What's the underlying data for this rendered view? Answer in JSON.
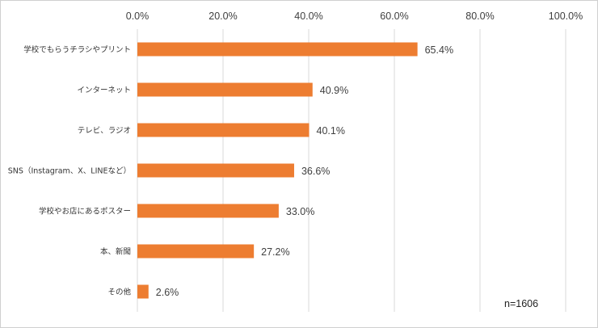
{
  "chart_data": {
    "type": "bar",
    "orientation": "horizontal",
    "categories": [
      "学校でもらうチラシやプリント",
      "インターネット",
      "テレビ、ラジオ",
      "SNS（Instagram、X、LINEなど）",
      "学校やお店にあるポスター",
      "本、新聞",
      "その他"
    ],
    "values": [
      65.4,
      40.9,
      40.1,
      36.6,
      33.0,
      27.2,
      2.6
    ],
    "value_labels": [
      "65.4%",
      "40.9%",
      "40.1%",
      "36.6%",
      "33.0%",
      "27.2%",
      "2.6%"
    ],
    "xlim": [
      0,
      100
    ],
    "x_ticks": [
      0,
      20,
      40,
      60,
      80,
      100
    ],
    "x_tick_labels": [
      "0.0%",
      "20.0%",
      "40.0%",
      "60.0%",
      "80.0%",
      "100.0%"
    ],
    "x_axis_position": "top",
    "grid": "vertical",
    "bar_color": "#ED7D31",
    "grid_color": "#d9d9d9",
    "annotation": "n=1606"
  }
}
